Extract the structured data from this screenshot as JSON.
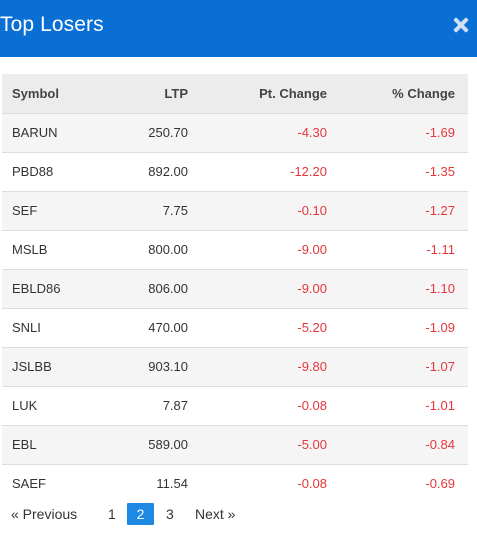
{
  "modal": {
    "title": "Top Losers",
    "close_icon": "close-icon"
  },
  "table": {
    "headers": {
      "symbol": "Symbol",
      "ltp": "LTP",
      "pt_change": "Pt. Change",
      "pct_change": "% Change"
    },
    "rows": [
      {
        "symbol": "BARUN",
        "ltp": "250.70",
        "pt_change": "-4.30",
        "pct_change": "-1.69"
      },
      {
        "symbol": "PBD88",
        "ltp": "892.00",
        "pt_change": "-12.20",
        "pct_change": "-1.35"
      },
      {
        "symbol": "SEF",
        "ltp": "7.75",
        "pt_change": "-0.10",
        "pct_change": "-1.27"
      },
      {
        "symbol": "MSLB",
        "ltp": "800.00",
        "pt_change": "-9.00",
        "pct_change": "-1.11"
      },
      {
        "symbol": "EBLD86",
        "ltp": "806.00",
        "pt_change": "-9.00",
        "pct_change": "-1.10"
      },
      {
        "symbol": "SNLI",
        "ltp": "470.00",
        "pt_change": "-5.20",
        "pct_change": "-1.09"
      },
      {
        "symbol": "JSLBB",
        "ltp": "903.10",
        "pt_change": "-9.80",
        "pct_change": "-1.07"
      },
      {
        "symbol": "LUK",
        "ltp": "7.87",
        "pt_change": "-0.08",
        "pct_change": "-1.01"
      },
      {
        "symbol": "EBL",
        "ltp": "589.00",
        "pt_change": "-5.00",
        "pct_change": "-0.84"
      },
      {
        "symbol": "SAEF",
        "ltp": "11.54",
        "pt_change": "-0.08",
        "pct_change": "-0.69"
      }
    ]
  },
  "pagination": {
    "previous": "«  Previous",
    "pages": [
      "1",
      "2",
      "3"
    ],
    "current": "2",
    "next": "Next  »"
  },
  "colors": {
    "header_bg": "#0a6fd4",
    "negative": "#e8363a",
    "active_page": "#1e88e5"
  }
}
